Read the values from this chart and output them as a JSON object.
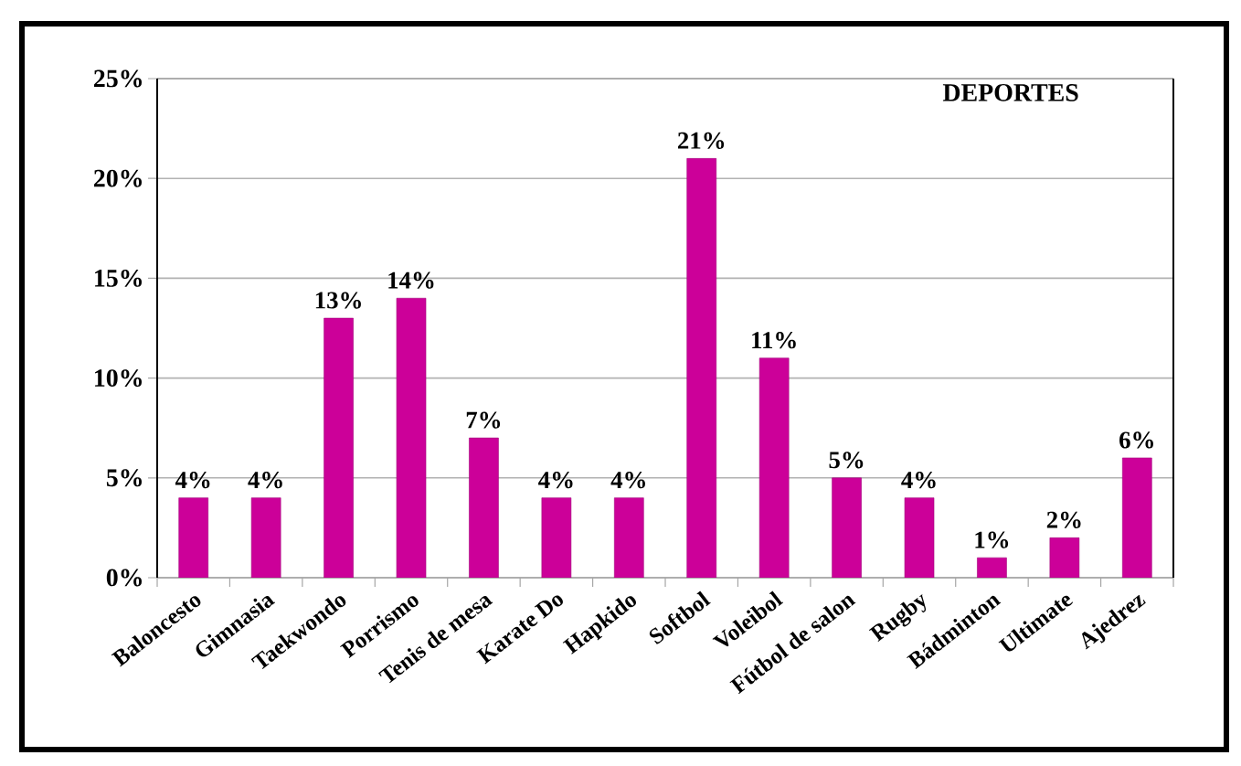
{
  "chart_data": {
    "type": "bar",
    "title": "DEPORTES",
    "categories": [
      "Baloncesto",
      "Gimnasia",
      "Taekwondo",
      "Porrismo",
      "Tenis de mesa",
      "Karate Do",
      "Hapkido",
      "Softbol",
      "Voleibol",
      "Fútbol de salon",
      "Rugby",
      "Bádminton",
      "Ultimate",
      "Ajedrez"
    ],
    "values": [
      4,
      4,
      13,
      14,
      7,
      4,
      4,
      21,
      11,
      5,
      4,
      1,
      2,
      6
    ],
    "value_labels": [
      "4%",
      "4%",
      "13%",
      "14%",
      "7%",
      "4%",
      "4%",
      "21%",
      "11%",
      "5%",
      "4%",
      "1%",
      "2%",
      "6%"
    ],
    "color": "#cc0099",
    "ylim": [
      0,
      25
    ],
    "yticks": [
      {
        "value": 0,
        "label": "0%"
      },
      {
        "value": 5,
        "label": "5%"
      },
      {
        "value": 10,
        "label": "10%"
      },
      {
        "value": 15,
        "label": "15%"
      },
      {
        "value": 20,
        "label": "20%"
      },
      {
        "value": 25,
        "label": "25%"
      }
    ],
    "grid": "y"
  }
}
